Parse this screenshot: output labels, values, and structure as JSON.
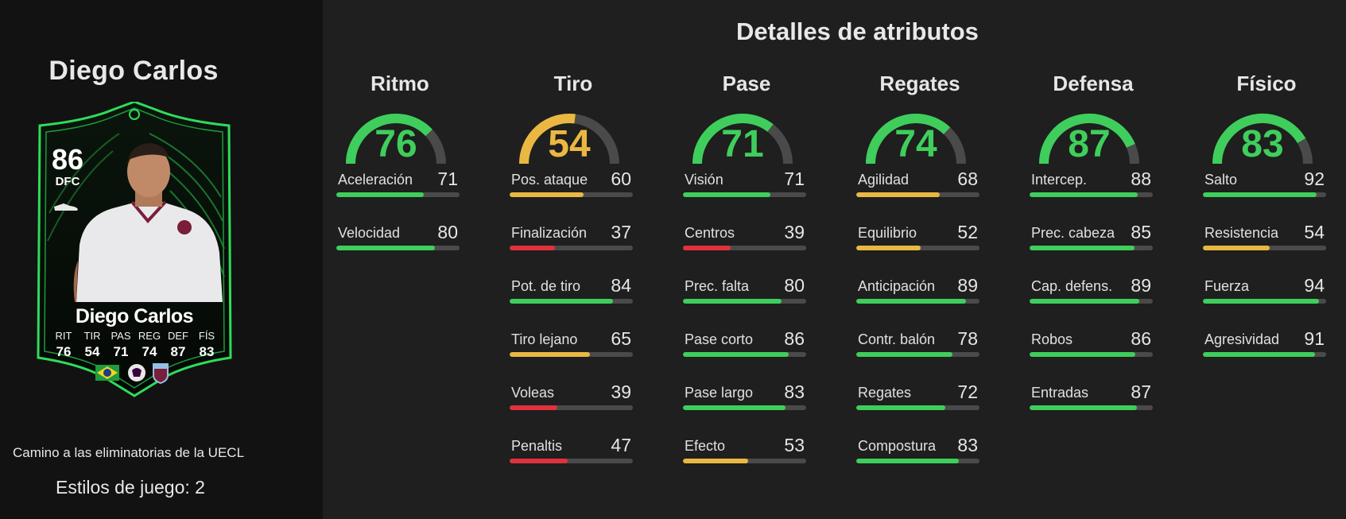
{
  "player": {
    "title": "Diego Carlos",
    "card_rating": "86",
    "card_position": "DFC",
    "card_name": "Diego Carlos",
    "card_stats": [
      {
        "label": "RIT",
        "value": "76"
      },
      {
        "label": "TIR",
        "value": "54"
      },
      {
        "label": "PAS",
        "value": "71"
      },
      {
        "label": "REG",
        "value": "74"
      },
      {
        "label": "DEF",
        "value": "87"
      },
      {
        "label": "FÍS",
        "value": "83"
      }
    ],
    "promo": "Camino a las eliminatorias de la UECL",
    "playstyles": "Estilos de juego: 2"
  },
  "details": {
    "title": "Detalles de atributos",
    "categories": [
      {
        "name": "Ritmo",
        "value": 76,
        "color": "#3fce5c",
        "subs": [
          {
            "name": "Aceleración",
            "value": 71
          },
          {
            "name": "Velocidad",
            "value": 80
          }
        ]
      },
      {
        "name": "Tiro",
        "value": 54,
        "color": "#eab842",
        "subs": [
          {
            "name": "Pos. ataque",
            "value": 60
          },
          {
            "name": "Finalización",
            "value": 37
          },
          {
            "name": "Pot. de tiro",
            "value": 84
          },
          {
            "name": "Tiro lejano",
            "value": 65
          },
          {
            "name": "Voleas",
            "value": 39
          },
          {
            "name": "Penaltis",
            "value": 47
          }
        ]
      },
      {
        "name": "Pase",
        "value": 71,
        "color": "#3fce5c",
        "subs": [
          {
            "name": "Visión",
            "value": 71
          },
          {
            "name": "Centros",
            "value": 39
          },
          {
            "name": "Prec. falta",
            "value": 80
          },
          {
            "name": "Pase corto",
            "value": 86
          },
          {
            "name": "Pase largo",
            "value": 83
          },
          {
            "name": "Efecto",
            "value": 53
          }
        ]
      },
      {
        "name": "Regates",
        "value": 74,
        "color": "#3fce5c",
        "subs": [
          {
            "name": "Agilidad",
            "value": 68
          },
          {
            "name": "Equilibrio",
            "value": 52
          },
          {
            "name": "Anticipación",
            "value": 89
          },
          {
            "name": "Contr. balón",
            "value": 78
          },
          {
            "name": "Regates",
            "value": 72
          },
          {
            "name": "Compostura",
            "value": 83
          }
        ]
      },
      {
        "name": "Defensa",
        "value": 87,
        "color": "#3fce5c",
        "subs": [
          {
            "name": "Intercep.",
            "value": 88
          },
          {
            "name": "Prec. cabeza",
            "value": 85
          },
          {
            "name": "Cap. defens.",
            "value": 89
          },
          {
            "name": "Robos",
            "value": 86
          },
          {
            "name": "Entradas",
            "value": 87
          }
        ]
      },
      {
        "name": "Físico",
        "value": 83,
        "color": "#3fce5c",
        "subs": [
          {
            "name": "Salto",
            "value": 92
          },
          {
            "name": "Resistencia",
            "value": 54
          },
          {
            "name": "Fuerza",
            "value": 94
          },
          {
            "name": "Agresividad",
            "value": 91
          }
        ]
      }
    ]
  },
  "colors": {
    "high": "#3fce5c",
    "mid": "#eab842",
    "low": "#e0313d",
    "track": "#4a4a4a"
  }
}
